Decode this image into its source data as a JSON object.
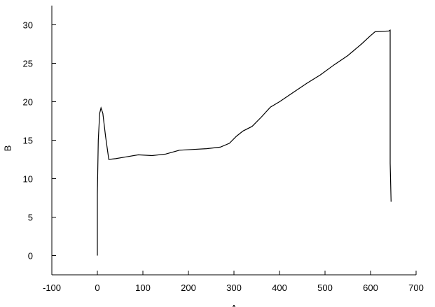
{
  "chart_data": {
    "type": "line",
    "x_label": "A",
    "y_label": "B",
    "x": [
      0,
      0,
      2,
      5,
      8,
      12,
      18,
      25,
      40,
      60,
      90,
      120,
      150,
      180,
      210,
      240,
      270,
      290,
      305,
      320,
      340,
      360,
      380,
      400,
      430,
      460,
      490,
      520,
      550,
      580,
      600,
      610,
      640,
      643,
      643,
      645
    ],
    "series": [
      {
        "color": "#000000",
        "values": [
          0,
          8,
          15,
          18.5,
          19.2,
          18.5,
          15.5,
          12.5,
          12.6,
          12.8,
          13.1,
          13.0,
          13.2,
          13.7,
          13.8,
          13.9,
          14.1,
          14.6,
          15.5,
          16.2,
          16.8,
          18,
          19.3,
          20,
          21.2,
          22.4,
          23.5,
          24.8,
          26,
          27.5,
          28.6,
          29.1,
          29.2,
          29.3,
          12,
          7
        ]
      }
    ],
    "xlim": [
      -100,
      700
    ],
    "xticks": [
      -100,
      0,
      100,
      200,
      300,
      400,
      500,
      600,
      700
    ],
    "ylim": [
      -2.5,
      32.5
    ],
    "yticks": [
      0,
      5,
      10,
      15,
      20,
      25,
      30
    ]
  }
}
